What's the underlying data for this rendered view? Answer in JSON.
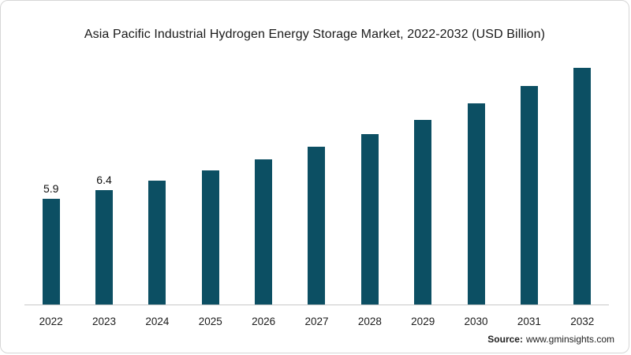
{
  "chart_data": {
    "type": "bar",
    "title": "Asia Pacific Industrial Hydrogen Energy Storage Market, 2022-2032 (USD Billion)",
    "categories": [
      "2022",
      "2023",
      "2024",
      "2025",
      "2026",
      "2027",
      "2028",
      "2029",
      "2030",
      "2031",
      "2032"
    ],
    "values": [
      5.9,
      6.4,
      6.9,
      7.5,
      8.1,
      8.8,
      9.5,
      10.3,
      11.2,
      12.2,
      13.2
    ],
    "data_labels": [
      "5.9",
      "6.4",
      "",
      "",
      "",
      "",
      "",
      "",
      "",
      "",
      ""
    ],
    "bar_color": "#0c4f63",
    "xlabel": "",
    "ylabel": "",
    "ylim": [
      0,
      14
    ],
    "grid": false,
    "legend": false,
    "axis_line_color": "#c9c9c9"
  },
  "footer": {
    "source_label": "Source:",
    "source_value": "www.gminsights.com"
  }
}
